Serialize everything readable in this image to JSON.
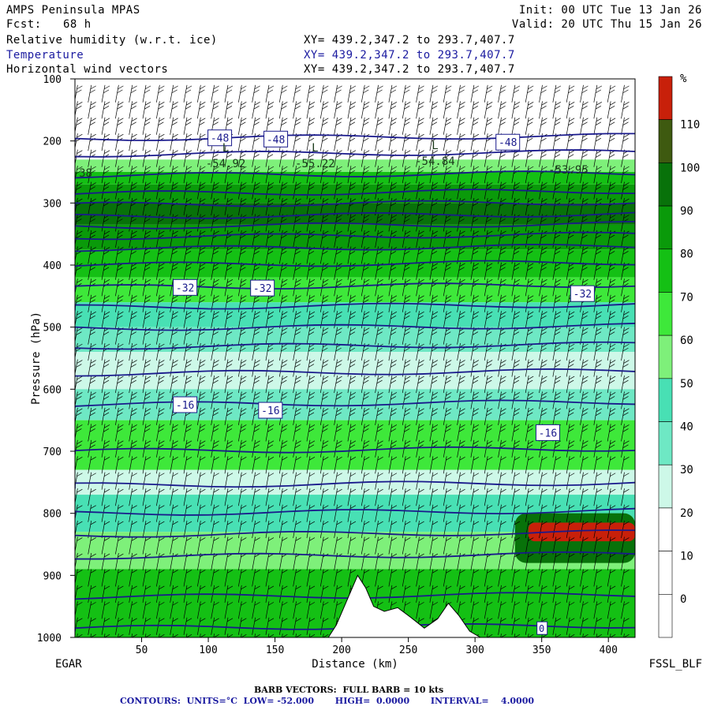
{
  "header": {
    "model": "AMPS Peninsula MPAS",
    "fcst_label": "Fcst:",
    "fcst_value": "68 h",
    "init": "Init: 00 UTC Tue 13 Jan 26",
    "valid": "Valid: 20 UTC Thu 15 Jan 26",
    "fields": [
      {
        "name": "Relative humidity (w.r.t. ice)",
        "xy": "XY= 439.2,347.2 to 293.7,407.7"
      },
      {
        "name": "Temperature",
        "xy": "XY= 439.2,347.2 to 293.7,407.7"
      },
      {
        "name": "Horizontal wind vectors",
        "xy": "XY= 439.2,347.2 to 293.7,407.7"
      }
    ]
  },
  "colors": {
    "temperature": "#1a1a8c",
    "terrain": "#ffffff",
    "rh_scale": [
      "#ffffff",
      "#ffffff",
      "#ffffff",
      "#ffffff",
      "#cdf8e8",
      "#6ee8c4",
      "#48e0b4",
      "#7ef07a",
      "#3ee83a",
      "#14c014",
      "#0a9a0a",
      "#08720a",
      "#3e5a10",
      "#c8200a"
    ]
  },
  "chart_data": {
    "type": "contour",
    "xlabel": "Distance (km)",
    "ylabel": "Pressure (hPa)",
    "xlim": [
      0,
      420
    ],
    "ylim": [
      1000,
      100
    ],
    "x_ticks": [
      50,
      100,
      150,
      200,
      250,
      300,
      350,
      400
    ],
    "y_ticks": [
      100,
      200,
      300,
      400,
      500,
      600,
      700,
      800,
      900,
      1000
    ],
    "left_endpoint": "EGAR",
    "right_endpoint": "FSSL_BLF",
    "colorbar": {
      "unit": "%",
      "labels": [
        0,
        10,
        20,
        30,
        40,
        50,
        60,
        70,
        80,
        90,
        100,
        110
      ]
    },
    "rh_bands": [
      {
        "pmin": 230,
        "pmax": 250,
        "rh": 55
      },
      {
        "pmin": 250,
        "pmax": 270,
        "rh": 75
      },
      {
        "pmin": 270,
        "pmax": 300,
        "rh": 85
      },
      {
        "pmin": 300,
        "pmax": 335,
        "rh": 95
      },
      {
        "pmin": 335,
        "pmax": 375,
        "rh": 88
      },
      {
        "pmin": 375,
        "pmax": 420,
        "rh": 75
      },
      {
        "pmin": 420,
        "pmax": 460,
        "rh": 60
      },
      {
        "pmin": 460,
        "pmax": 500,
        "rh": 45
      },
      {
        "pmin": 500,
        "pmax": 540,
        "rh": 35
      },
      {
        "pmin": 540,
        "pmax": 600,
        "rh": 20
      },
      {
        "pmin": 600,
        "pmax": 650,
        "rh": 35
      },
      {
        "pmin": 650,
        "pmax": 730,
        "rh": 62
      },
      {
        "pmin": 730,
        "pmax": 770,
        "rh": 25
      },
      {
        "pmin": 770,
        "pmax": 830,
        "rh": 45
      },
      {
        "pmin": 830,
        "pmax": 890,
        "rh": 55
      },
      {
        "pmin": 890,
        "pmax": 1000,
        "rh": 75
      }
    ],
    "rh_high_patch": {
      "xmin": 330,
      "xmax": 420,
      "pmin": 800,
      "pmax": 880,
      "rh": 95
    },
    "rh_max_patch": {
      "xmin": 340,
      "xmax": 420,
      "pmin": 815,
      "pmax": 845,
      "rh": 115
    },
    "temperature_contours": [
      {
        "value": -48,
        "p": 196
      },
      {
        "value": -52,
        "p": 222
      },
      {
        "value": -48,
        "p": 256
      },
      {
        "value": -44,
        "p": 285
      },
      {
        "value": -44,
        "p": 303
      },
      {
        "value": -40,
        "p": 322
      },
      {
        "value": -40,
        "p": 338
      },
      {
        "value": -36,
        "p": 355
      },
      {
        "value": -36,
        "p": 374
      },
      {
        "value": -32,
        "p": 400
      },
      {
        "value": -32,
        "p": 436
      },
      {
        "value": -28,
        "p": 468
      },
      {
        "value": -24,
        "p": 502
      },
      {
        "value": -24,
        "p": 532
      },
      {
        "value": -20,
        "p": 575
      },
      {
        "value": -16,
        "p": 625
      },
      {
        "value": -12,
        "p": 700
      },
      {
        "value": -8,
        "p": 755
      },
      {
        "value": -8,
        "p": 800
      },
      {
        "value": -4,
        "p": 835
      },
      {
        "value": -4,
        "p": 870
      },
      {
        "value": 0,
        "p": 935
      },
      {
        "value": 0,
        "p": 985
      }
    ],
    "contour_labels": [
      {
        "text": "-48",
        "x": 108,
        "p": 195
      },
      {
        "text": "-48",
        "x": 150,
        "p": 197
      },
      {
        "text": "-48",
        "x": 324,
        "p": 202
      },
      {
        "text": "-32",
        "x": 82,
        "p": 436
      },
      {
        "text": "-32",
        "x": 140,
        "p": 437
      },
      {
        "text": "-32",
        "x": 380,
        "p": 446
      },
      {
        "text": "-16",
        "x": 82,
        "p": 625
      },
      {
        "text": "-16",
        "x": 146,
        "p": 634
      },
      {
        "text": "-16",
        "x": 354,
        "p": 670
      }
    ],
    "lows": [
      {
        "label": "L",
        "value": "-54.92",
        "x": 113,
        "p": 240
      },
      {
        "label": "L",
        "value": "-55.22",
        "x": 180,
        "p": 240
      },
      {
        "label": "L",
        "value": "-54.84",
        "x": 270,
        "p": 236
      },
      {
        "label": "",
        "value": "-53.95",
        "x": 370,
        "p": 250
      },
      {
        "label": "",
        "value": "38",
        "x": 8,
        "p": 255
      }
    ],
    "terrain": [
      {
        "x": 190,
        "p": 1000
      },
      {
        "x": 196,
        "p": 980
      },
      {
        "x": 202,
        "p": 950
      },
      {
        "x": 207,
        "p": 925
      },
      {
        "x": 212,
        "p": 900
      },
      {
        "x": 218,
        "p": 920
      },
      {
        "x": 224,
        "p": 950
      },
      {
        "x": 232,
        "p": 958
      },
      {
        "x": 242,
        "p": 952
      },
      {
        "x": 252,
        "p": 968
      },
      {
        "x": 262,
        "p": 985
      },
      {
        "x": 272,
        "p": 970
      },
      {
        "x": 280,
        "p": 945
      },
      {
        "x": 288,
        "p": 965
      },
      {
        "x": 296,
        "p": 990
      },
      {
        "x": 304,
        "p": 1000
      }
    ],
    "bottom_contour_label": "0"
  },
  "footer": {
    "barb": "BARB VECTORS:  FULL BARB = 10 kts",
    "contours": "CONTOURS:  UNITS=°C  LOW= -52.000       HIGH=  0.0000       INTERVAL=    4.0000"
  }
}
